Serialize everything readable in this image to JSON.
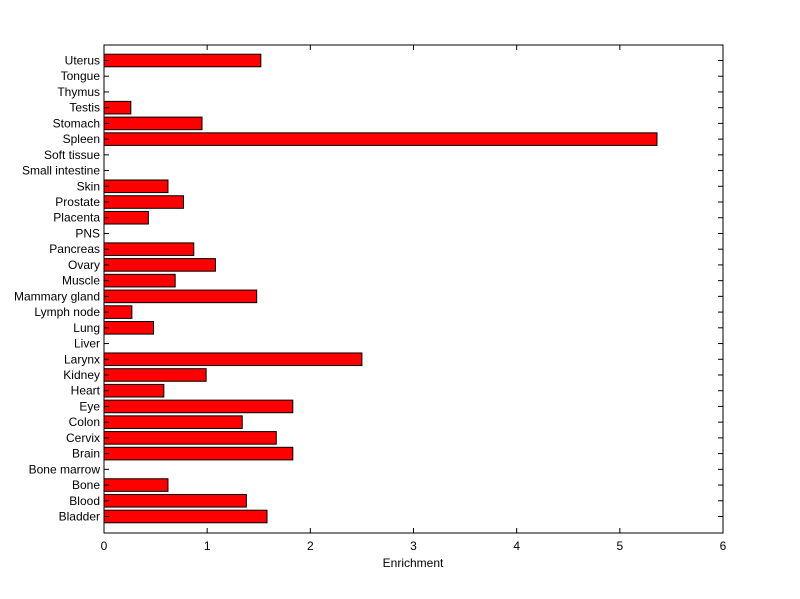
{
  "chart_data": {
    "type": "bar",
    "orientation": "horizontal",
    "title": "",
    "xlabel": "Enrichment",
    "ylabel": "",
    "xlim": [
      0,
      6
    ],
    "xticks": [
      "0",
      "1",
      "2",
      "3",
      "4",
      "5",
      "6"
    ],
    "grid": false,
    "bar_color": "#ff0000",
    "categories": [
      "Bladder",
      "Blood",
      "Bone",
      "Bone marrow",
      "Brain",
      "Cervix",
      "Colon",
      "Eye",
      "Heart",
      "Kidney",
      "Larynx",
      "Liver",
      "Lung",
      "Lymph node",
      "Mammary gland",
      "Muscle",
      "Ovary",
      "Pancreas",
      "PNS",
      "Placenta",
      "Prostate",
      "Skin",
      "Small intestine",
      "Soft tissue",
      "Spleen",
      "Stomach",
      "Testis",
      "Thymus",
      "Tongue",
      "Uterus"
    ],
    "values": [
      1.58,
      1.38,
      0.62,
      0,
      1.83,
      1.67,
      1.34,
      1.83,
      0.58,
      0.99,
      2.5,
      0,
      0.48,
      0.27,
      1.48,
      0.69,
      1.08,
      0.87,
      0,
      0.43,
      0.77,
      0.62,
      0,
      0,
      5.36,
      0.95,
      0.26,
      0,
      0,
      1.52
    ]
  }
}
